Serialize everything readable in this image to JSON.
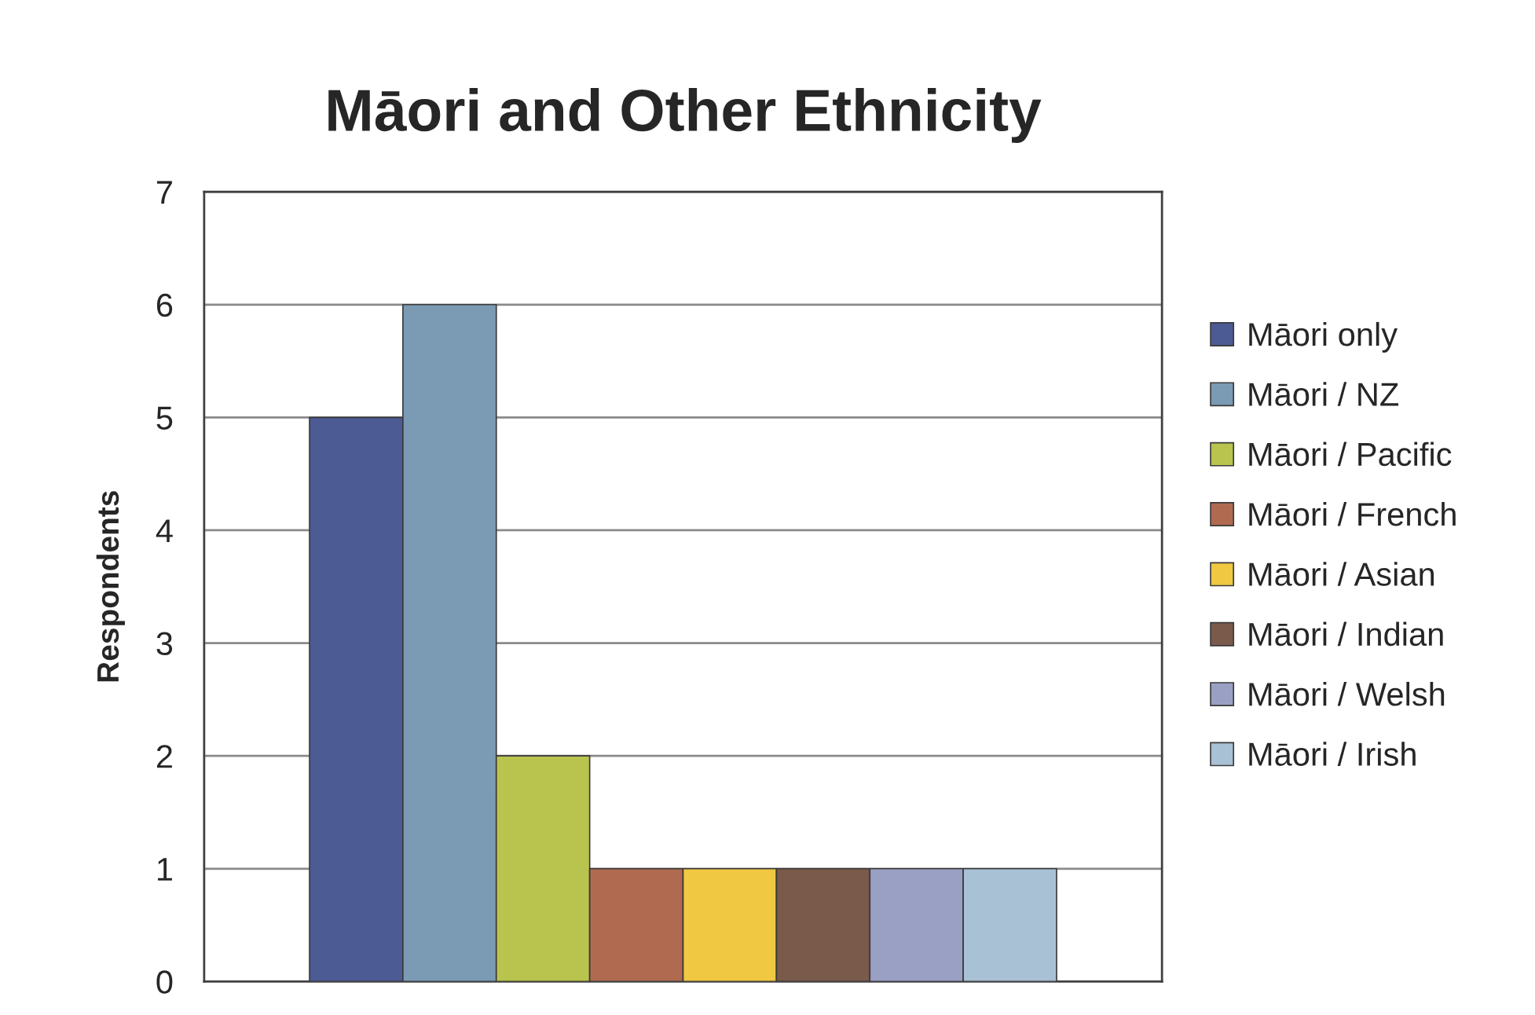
{
  "chart_data": {
    "type": "bar",
    "title": "Māori and Other Ethnicity",
    "ylabel": "Respondents",
    "categories": [
      null
    ],
    "series": [
      {
        "name": "Māori only",
        "color": "#4c5b94",
        "values": [
          5
        ]
      },
      {
        "name": "Māori / NZ",
        "color": "#7b9ab4",
        "values": [
          6
        ]
      },
      {
        "name": "Māori / Pacific",
        "color": "#b9c44e",
        "values": [
          2
        ]
      },
      {
        "name": "Māori / French",
        "color": "#b06a50",
        "values": [
          1
        ]
      },
      {
        "name": "Māori / Asian",
        "color": "#f0c842",
        "values": [
          1
        ]
      },
      {
        "name": "Māori / Indian",
        "color": "#7a5a4a",
        "values": [
          1
        ]
      },
      {
        "name": "Māori / Welsh",
        "color": "#9aa0c4",
        "values": [
          1
        ]
      },
      {
        "name": "Māori / Irish",
        "color": "#a9c1d5",
        "values": [
          1
        ]
      }
    ],
    "ylim": [
      0,
      7
    ],
    "yticks": [
      0,
      1,
      2,
      3,
      4,
      5,
      6,
      7
    ],
    "grid": "y",
    "legend": "right"
  }
}
